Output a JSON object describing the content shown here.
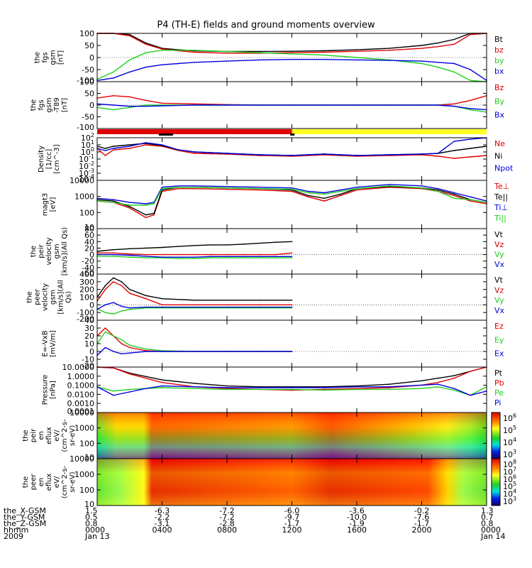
{
  "title": "P4 (TH-E) fields and ground moments overview",
  "colors": {
    "black": "#000000",
    "red": "#e00000",
    "green": "#20d020",
    "blue": "#0000e0",
    "yellow": "#ffff20"
  },
  "colorbar_ticks": [
    "10^6",
    "10^5",
    "10^4",
    "10^3"
  ],
  "colorbar2_ticks": [
    "10^8",
    "10^7",
    "10^6",
    "10^5",
    "10^4",
    "10^3"
  ],
  "footer": {
    "rows": [
      {
        "label": "the_X-GSM",
        "values": [
          "1.5",
          "-6.3",
          "-7.2",
          "-6.0",
          "-3.6",
          "-0.2",
          "1.3"
        ]
      },
      {
        "label": "the_Y-GSM",
        "values": [
          "0.5",
          "-2.2",
          "-7.2",
          "-9.7",
          "-10.0",
          "-7.6",
          "0.7"
        ]
      },
      {
        "label": "the_Z-GSM",
        "values": [
          "0.8",
          "-3.1",
          "-2.8",
          "-1.7",
          "-1.9",
          "-1.7",
          "0.8"
        ]
      },
      {
        "label": "hhmm",
        "values": [
          "0000",
          "0400",
          "0800",
          "1200",
          "1600",
          "2000",
          "0000"
        ]
      },
      {
        "label": "2009",
        "values": [
          "Jan 13",
          "",
          "",
          "",
          "",
          "",
          "Jan 14"
        ]
      }
    ]
  },
  "chart_data": [
    {
      "type": "line",
      "ylabel": [
        "the",
        "fgs",
        "gsm",
        "[nT]"
      ],
      "ylim": [
        -100,
        100
      ],
      "ticks": [
        "100",
        "50",
        "0",
        "-50",
        "-100"
      ],
      "x": [
        0,
        1,
        2,
        3,
        4,
        5,
        6,
        8,
        10,
        12,
        14,
        16,
        18,
        20,
        21,
        22,
        23,
        24
      ],
      "series": [
        {
          "name": "Bt",
          "color": "black",
          "values": [
            100,
            100,
            95,
            60,
            38,
            32,
            28,
            25,
            25,
            26,
            28,
            32,
            38,
            50,
            60,
            75,
            100,
            100
          ]
        },
        {
          "name": "bz",
          "color": "red",
          "values": [
            100,
            100,
            90,
            55,
            35,
            28,
            22,
            18,
            18,
            20,
            22,
            26,
            30,
            38,
            45,
            55,
            95,
            100
          ]
        },
        {
          "name": "by",
          "color": "green",
          "values": [
            -90,
            -60,
            -10,
            20,
            30,
            30,
            30,
            25,
            20,
            15,
            10,
            0,
            -10,
            -25,
            -40,
            -60,
            -95,
            -100
          ]
        },
        {
          "name": "bx",
          "color": "blue",
          "values": [
            -95,
            -85,
            -60,
            -40,
            -30,
            -25,
            -20,
            -15,
            -10,
            -8,
            -8,
            -10,
            -12,
            -15,
            -20,
            -25,
            -50,
            -95
          ]
        }
      ]
    },
    {
      "type": "line",
      "ylabel": [
        "the",
        "fgs",
        "gsm",
        "-T89",
        "[nT]"
      ],
      "ylim": [
        -100,
        100
      ],
      "ticks": [
        "100",
        "50",
        "0",
        "-50",
        "-100"
      ],
      "x": [
        0,
        1,
        2,
        3,
        4,
        6,
        8,
        10,
        12,
        14,
        16,
        18,
        20,
        21,
        22,
        23,
        24
      ],
      "series": [
        {
          "name": "Bz",
          "color": "red",
          "values": [
            30,
            40,
            35,
            20,
            8,
            5,
            2,
            0,
            0,
            0,
            0,
            0,
            0,
            0,
            5,
            20,
            40
          ]
        },
        {
          "name": "By",
          "color": "green",
          "values": [
            -10,
            -20,
            -10,
            0,
            0,
            0,
            0,
            0,
            0,
            0,
            0,
            0,
            0,
            0,
            -5,
            -20,
            -30
          ]
        },
        {
          "name": "Bx",
          "color": "blue",
          "values": [
            5,
            0,
            -5,
            -5,
            -3,
            0,
            0,
            0,
            0,
            0,
            0,
            0,
            0,
            0,
            -5,
            -15,
            -20
          ]
        }
      ]
    },
    {
      "type": "line",
      "ylabel": [
        "Density",
        "[1/cc]",
        "[cm^-3]"
      ],
      "ylim": [
        -4,
        2
      ],
      "log": true,
      "ticks": [
        "10^2",
        "10^1",
        "10^0",
        "10^-1",
        "10^-2",
        "10^-3",
        "10^-4"
      ],
      "x": [
        0,
        0.5,
        1,
        2,
        3,
        4,
        5,
        6,
        8,
        10,
        12,
        14,
        16,
        18,
        20,
        21,
        22,
        23,
        24
      ],
      "series": [
        {
          "name": "Ne",
          "color": "red",
          "values": [
            0.5,
            -0.5,
            0.3,
            0.5,
            1.0,
            0.8,
            0.2,
            -0.2,
            -0.3,
            -0.5,
            -0.6,
            -0.4,
            -0.6,
            -0.5,
            -0.4,
            -0.6,
            -0.9,
            -0.7,
            -0.5
          ]
        },
        {
          "name": "Ni",
          "color": "black",
          "values": [
            0.8,
            0.5,
            0.8,
            1.0,
            1.2,
            0.9,
            0.3,
            0,
            -0.2,
            -0.4,
            -0.5,
            -0.3,
            -0.5,
            -0.4,
            -0.3,
            -0.2,
            0.2,
            0.5,
            0.8
          ]
        },
        {
          "name": "Npot",
          "color": "blue",
          "values": [
            0.5,
            0.2,
            0.5,
            0.8,
            1.3,
            1.0,
            0.3,
            0,
            -0.2,
            -0.4,
            -0.5,
            -0.3,
            -0.5,
            -0.4,
            -0.3,
            -0.2,
            1.5,
            1.8,
            2
          ]
        }
      ]
    },
    {
      "type": "line",
      "ylabel": [
        "magt3",
        "[eV]"
      ],
      "ylim": [
        0.5,
        4
      ],
      "log": true,
      "ticks": [
        "10000",
        "1000",
        "100",
        "10"
      ],
      "x": [
        0,
        1,
        2,
        3,
        3.5,
        4,
        5,
        6,
        8,
        10,
        12,
        13,
        14,
        15,
        16,
        18,
        20,
        21,
        22,
        23,
        24
      ],
      "series": [
        {
          "name": "Te⊥",
          "color": "red",
          "values": [
            2.5,
            2.4,
            2.0,
            1.3,
            1.5,
            3.2,
            3.4,
            3.4,
            3.35,
            3.3,
            3.2,
            2.8,
            2.5,
            2.9,
            3.3,
            3.5,
            3.4,
            3.2,
            2.9,
            2.5,
            2.3
          ]
        },
        {
          "name": "Te||",
          "color": "black",
          "values": [
            2.6,
            2.5,
            2.1,
            1.5,
            1.6,
            3.3,
            3.5,
            3.5,
            3.45,
            3.4,
            3.3,
            2.9,
            2.7,
            3.0,
            3.4,
            3.55,
            3.45,
            3.3,
            3.0,
            2.6,
            2.4
          ]
        },
        {
          "name": "Ti⊥",
          "color": "blue",
          "values": [
            2.7,
            2.6,
            2.4,
            2.3,
            2.4,
            3.5,
            3.6,
            3.6,
            3.55,
            3.5,
            3.45,
            3.2,
            3.1,
            3.3,
            3.5,
            3.7,
            3.6,
            3.4,
            3.1,
            2.8,
            2.5
          ]
        },
        {
          "name": "Ti||",
          "color": "green",
          "values": [
            2.5,
            2.4,
            2.2,
            2.2,
            2.3,
            3.4,
            3.5,
            3.5,
            3.45,
            3.4,
            3.35,
            3.1,
            3.0,
            3.2,
            3.4,
            3.6,
            3.45,
            3.2,
            2.7,
            2.6,
            2.4
          ]
        }
      ]
    },
    {
      "type": "line",
      "ylabel": [
        "the",
        "peir",
        "velocity",
        "gsm",
        "[km/s](All Qs)"
      ],
      "ylim": [
        -60,
        80
      ],
      "ticks": [
        "80",
        "60",
        "40",
        "20",
        "0",
        "-20",
        "-40",
        "-60"
      ],
      "x": [
        0,
        1,
        2,
        3,
        4,
        5,
        6,
        7,
        8,
        9,
        10,
        11,
        12
      ],
      "series": [
        {
          "name": "Vt",
          "color": "black",
          "values": [
            10,
            15,
            18,
            20,
            22,
            25,
            28,
            30,
            30,
            32,
            35,
            38,
            40
          ]
        },
        {
          "name": "Vz",
          "color": "red",
          "values": [
            5,
            5,
            2,
            0,
            0,
            0,
            0,
            0,
            0,
            0,
            0,
            0,
            5
          ]
        },
        {
          "name": "Vy",
          "color": "green",
          "values": [
            -5,
            -5,
            -8,
            -10,
            -10,
            -12,
            -12,
            -10,
            -10,
            -10,
            -10,
            -10,
            -10
          ]
        },
        {
          "name": "Vx",
          "color": "blue",
          "values": [
            0,
            0,
            -2,
            -5,
            -8,
            -8,
            -8,
            -6,
            -6,
            -6,
            -6,
            -6,
            -6
          ]
        }
      ]
    },
    {
      "type": "line",
      "ylabel": [
        "the",
        "peer",
        "velocity",
        "gsm",
        "[km/s](All",
        "Qs)"
      ],
      "ylim": [
        -200,
        400
      ],
      "ticks": [
        "400",
        "300",
        "200",
        "100",
        "0",
        "-100",
        "-200"
      ],
      "x": [
        0,
        0.5,
        1,
        1.5,
        2,
        3,
        4,
        6,
        8,
        10,
        12
      ],
      "series": [
        {
          "name": "Vt",
          "color": "black",
          "values": [
            100,
            250,
            350,
            300,
            200,
            120,
            80,
            60,
            60,
            60,
            60
          ]
        },
        {
          "name": "Vz",
          "color": "red",
          "values": [
            50,
            200,
            300,
            250,
            150,
            80,
            0,
            0,
            0,
            0,
            0
          ]
        },
        {
          "name": "Vy",
          "color": "green",
          "values": [
            -50,
            -100,
            -120,
            -80,
            -60,
            -40,
            -40,
            -40,
            -40,
            -40,
            -40
          ]
        },
        {
          "name": "Vx",
          "color": "blue",
          "values": [
            -60,
            0,
            30,
            -20,
            -40,
            -30,
            -30,
            -30,
            -30,
            -30,
            -30
          ]
        }
      ]
    },
    {
      "type": "line",
      "ylabel": [
        "E=-VxB",
        "[mV/m]"
      ],
      "ylim": [
        -20,
        40
      ],
      "ticks": [
        "40",
        "30",
        "20",
        "10",
        "0",
        "-10",
        "-20"
      ],
      "x": [
        0,
        0.5,
        1,
        1.5,
        2,
        3,
        4,
        6,
        8,
        10,
        12
      ],
      "series": [
        {
          "name": "Ez",
          "color": "red",
          "values": [
            20,
            30,
            20,
            10,
            5,
            1,
            0,
            0,
            0,
            0,
            0
          ]
        },
        {
          "name": "Ey",
          "color": "green",
          "values": [
            10,
            25,
            20,
            15,
            8,
            3,
            1,
            0,
            0,
            0,
            0
          ]
        },
        {
          "name": "Ex",
          "color": "blue",
          "values": [
            -5,
            5,
            0,
            -3,
            -2,
            0,
            0,
            0,
            0,
            0,
            0
          ]
        }
      ]
    },
    {
      "type": "line",
      "ylabel": [
        "Pressure",
        "[nPa]"
      ],
      "ylim": [
        -4,
        1.3
      ],
      "log": true,
      "ticks": [
        "10.0000",
        "1.0000",
        "0.1000",
        "0.0100",
        "0.0010",
        "0.0001"
      ],
      "x": [
        0,
        1,
        2,
        3,
        4,
        6,
        8,
        10,
        12,
        14,
        16,
        18,
        20,
        21,
        22,
        23,
        24
      ],
      "series": [
        {
          "name": "Pt",
          "color": "black",
          "values": [
            1.3,
            1.2,
            0.6,
            0.2,
            -0.2,
            -0.6,
            -0.9,
            -1.0,
            -1.0,
            -1.0,
            -0.9,
            -0.7,
            -0.3,
            0,
            0.3,
            0.8,
            1.3
          ]
        },
        {
          "name": "Pb",
          "color": "red",
          "values": [
            1.3,
            1.2,
            0.5,
            0,
            -0.5,
            -1.0,
            -1.2,
            -1.3,
            -1.4,
            -1.3,
            -1.2,
            -1.1,
            -0.8,
            -0.5,
            0,
            0.8,
            1.3
          ]
        },
        {
          "name": "Pe",
          "color": "green",
          "values": [
            -1.0,
            -1.5,
            -1.3,
            -1.2,
            -1.1,
            -1.2,
            -1.3,
            -1.3,
            -1.3,
            -1.4,
            -1.3,
            -1.3,
            -1.2,
            -1.0,
            -1.4,
            -2.0,
            -1.0
          ]
        },
        {
          "name": "Pi",
          "color": "blue",
          "values": [
            -1.0,
            -2.0,
            -1.6,
            -1.2,
            -0.9,
            -1.0,
            -1.1,
            -1.1,
            -1.1,
            -1.1,
            -1.0,
            -1.0,
            -0.8,
            -0.7,
            -1.2,
            -2.0,
            -1.5
          ]
        }
      ]
    },
    {
      "type": "heatmap",
      "ylabel": [
        "the",
        "peir",
        "en",
        "eflux",
        "eV/",
        "(cm^2-s-",
        "sr-eV)"
      ],
      "ticks": [
        "10000",
        "1000",
        "100",
        "10"
      ]
    },
    {
      "type": "heatmap",
      "ylabel": [
        "the",
        "peer",
        "en",
        "eflux",
        "eV/",
        "(cm^2-s-",
        "sr-eV)"
      ],
      "ticks": [
        "10000",
        "1000",
        "100",
        "10"
      ]
    }
  ]
}
